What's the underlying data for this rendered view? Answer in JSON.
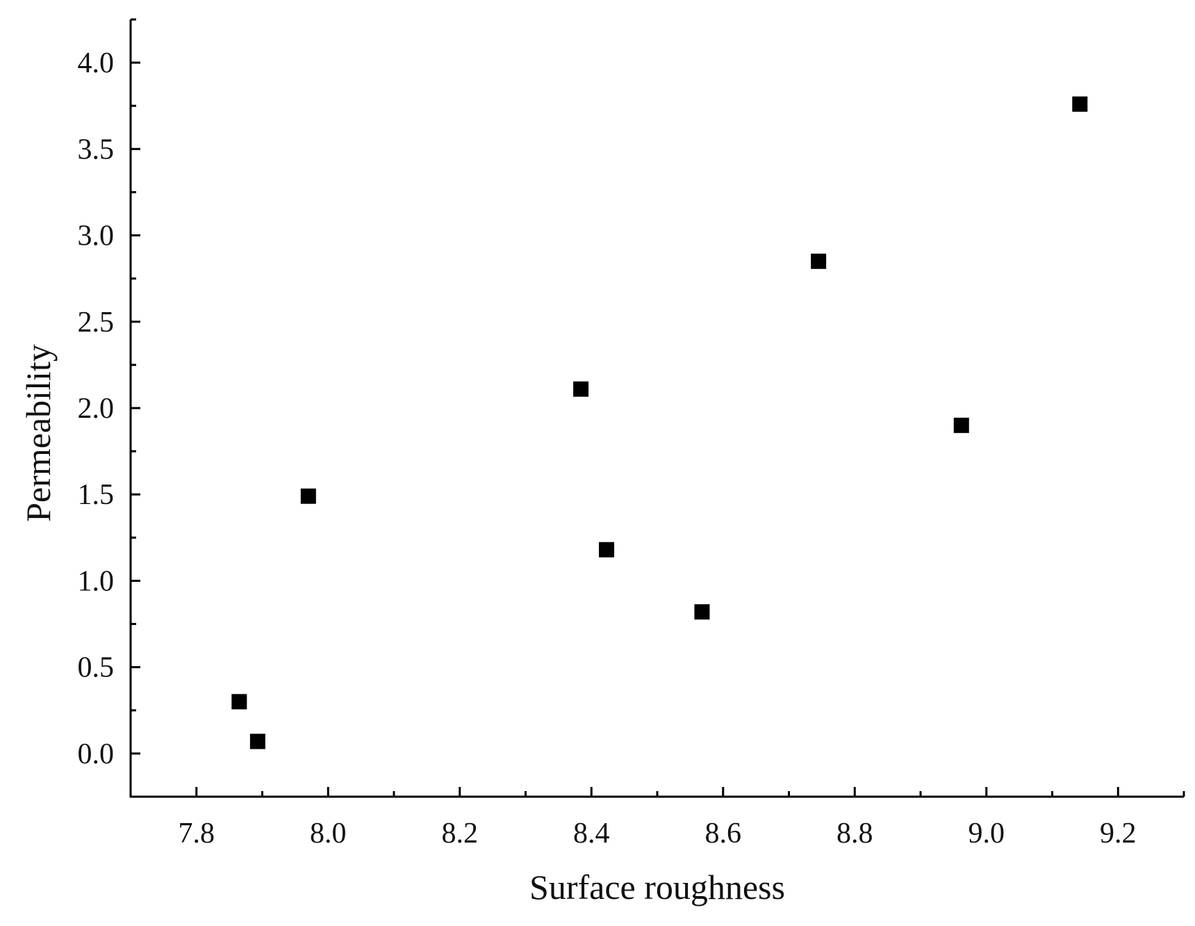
{
  "chart_data": {
    "type": "scatter",
    "title": "",
    "xlabel": "Surface roughness",
    "ylabel": "Permeability",
    "xlim": [
      7.7,
      9.3
    ],
    "ylim": [
      -0.25,
      4.25
    ],
    "x_ticks": [
      "7.8",
      "8.0",
      "8.2",
      "8.4",
      "8.6",
      "8.8",
      "9.0",
      "9.2"
    ],
    "y_ticks": [
      "0.0",
      "0.5",
      "1.0",
      "1.5",
      "2.0",
      "2.5",
      "3.0",
      "3.5",
      "4.0"
    ],
    "grid": false,
    "legend": "none",
    "marker": "square",
    "marker_color": "#000000",
    "axis_color": "#000000",
    "points": [
      {
        "x": 7.865,
        "y": 0.3
      },
      {
        "x": 7.893,
        "y": 0.07
      },
      {
        "x": 7.97,
        "y": 1.49
      },
      {
        "x": 8.384,
        "y": 2.11
      },
      {
        "x": 8.423,
        "y": 1.18
      },
      {
        "x": 8.568,
        "y": 0.82
      },
      {
        "x": 8.745,
        "y": 2.85
      },
      {
        "x": 8.962,
        "y": 1.9
      },
      {
        "x": 9.142,
        "y": 3.76
      }
    ]
  }
}
